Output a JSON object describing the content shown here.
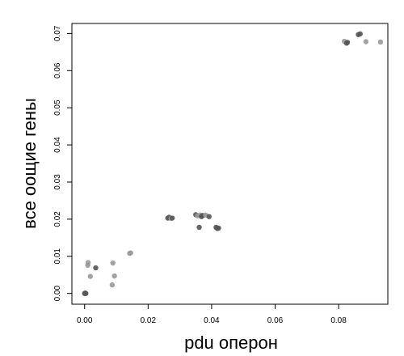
{
  "chart_data": {
    "type": "scatter",
    "xlabel": "pdu оперон",
    "ylabel": "все оощие гены",
    "xlim": [
      -0.004,
      0.0955
    ],
    "ylim": [
      -0.0029,
      0.0727
    ],
    "xticks": [
      "0.00",
      "0.02",
      "0.04",
      "0.06",
      "0.08"
    ],
    "xtick_values": [
      0.0,
      0.02,
      0.04,
      0.06,
      0.08
    ],
    "yticks": [
      "0.00",
      "0.01",
      "0.02",
      "0.03",
      "0.04",
      "0.05",
      "0.06",
      "0.07"
    ],
    "ytick_values": [
      0.0,
      0.01,
      0.02,
      0.03,
      0.04,
      0.05,
      0.06,
      0.07
    ],
    "grid": false,
    "point_colors": {
      "light": "#999999",
      "dark": "#555555"
    },
    "points": [
      {
        "x": 0.0,
        "y": 0.0,
        "tone": "dark"
      },
      {
        "x": 0.0002,
        "y": 0.0001,
        "tone": "dark"
      },
      {
        "x": 0.0004,
        "y": 0.0,
        "tone": "dark"
      },
      {
        "x": 0.001,
        "y": 0.0076,
        "tone": "light"
      },
      {
        "x": 0.0011,
        "y": 0.0083,
        "tone": "light"
      },
      {
        "x": 0.0018,
        "y": 0.0046,
        "tone": "light"
      },
      {
        "x": 0.0035,
        "y": 0.0069,
        "tone": "dark"
      },
      {
        "x": 0.0087,
        "y": 0.0023,
        "tone": "light"
      },
      {
        "x": 0.0089,
        "y": 0.0082,
        "tone": "light"
      },
      {
        "x": 0.0094,
        "y": 0.0047,
        "tone": "light"
      },
      {
        "x": 0.0142,
        "y": 0.0108,
        "tone": "light"
      },
      {
        "x": 0.0145,
        "y": 0.0109,
        "tone": "light"
      },
      {
        "x": 0.0262,
        "y": 0.0203,
        "tone": "dark"
      },
      {
        "x": 0.0266,
        "y": 0.0205,
        "tone": "dark"
      },
      {
        "x": 0.0272,
        "y": 0.0202,
        "tone": "light"
      },
      {
        "x": 0.0276,
        "y": 0.0203,
        "tone": "dark"
      },
      {
        "x": 0.035,
        "y": 0.0212,
        "tone": "dark"
      },
      {
        "x": 0.0356,
        "y": 0.0209,
        "tone": "light"
      },
      {
        "x": 0.0361,
        "y": 0.0178,
        "tone": "dark"
      },
      {
        "x": 0.0364,
        "y": 0.0211,
        "tone": "light"
      },
      {
        "x": 0.0368,
        "y": 0.0207,
        "tone": "dark"
      },
      {
        "x": 0.0372,
        "y": 0.021,
        "tone": "dark"
      },
      {
        "x": 0.0381,
        "y": 0.0211,
        "tone": "light"
      },
      {
        "x": 0.0392,
        "y": 0.0207,
        "tone": "dark"
      },
      {
        "x": 0.0414,
        "y": 0.0178,
        "tone": "dark"
      },
      {
        "x": 0.0418,
        "y": 0.0175,
        "tone": "dark"
      },
      {
        "x": 0.0422,
        "y": 0.0176,
        "tone": "dark"
      },
      {
        "x": 0.0818,
        "y": 0.0679,
        "tone": "light"
      },
      {
        "x": 0.0825,
        "y": 0.0674,
        "tone": "dark"
      },
      {
        "x": 0.0828,
        "y": 0.0676,
        "tone": "dark"
      },
      {
        "x": 0.0862,
        "y": 0.0697,
        "tone": "dark"
      },
      {
        "x": 0.0868,
        "y": 0.0699,
        "tone": "dark"
      },
      {
        "x": 0.0886,
        "y": 0.0678,
        "tone": "light"
      },
      {
        "x": 0.0932,
        "y": 0.0677,
        "tone": "light"
      }
    ]
  }
}
